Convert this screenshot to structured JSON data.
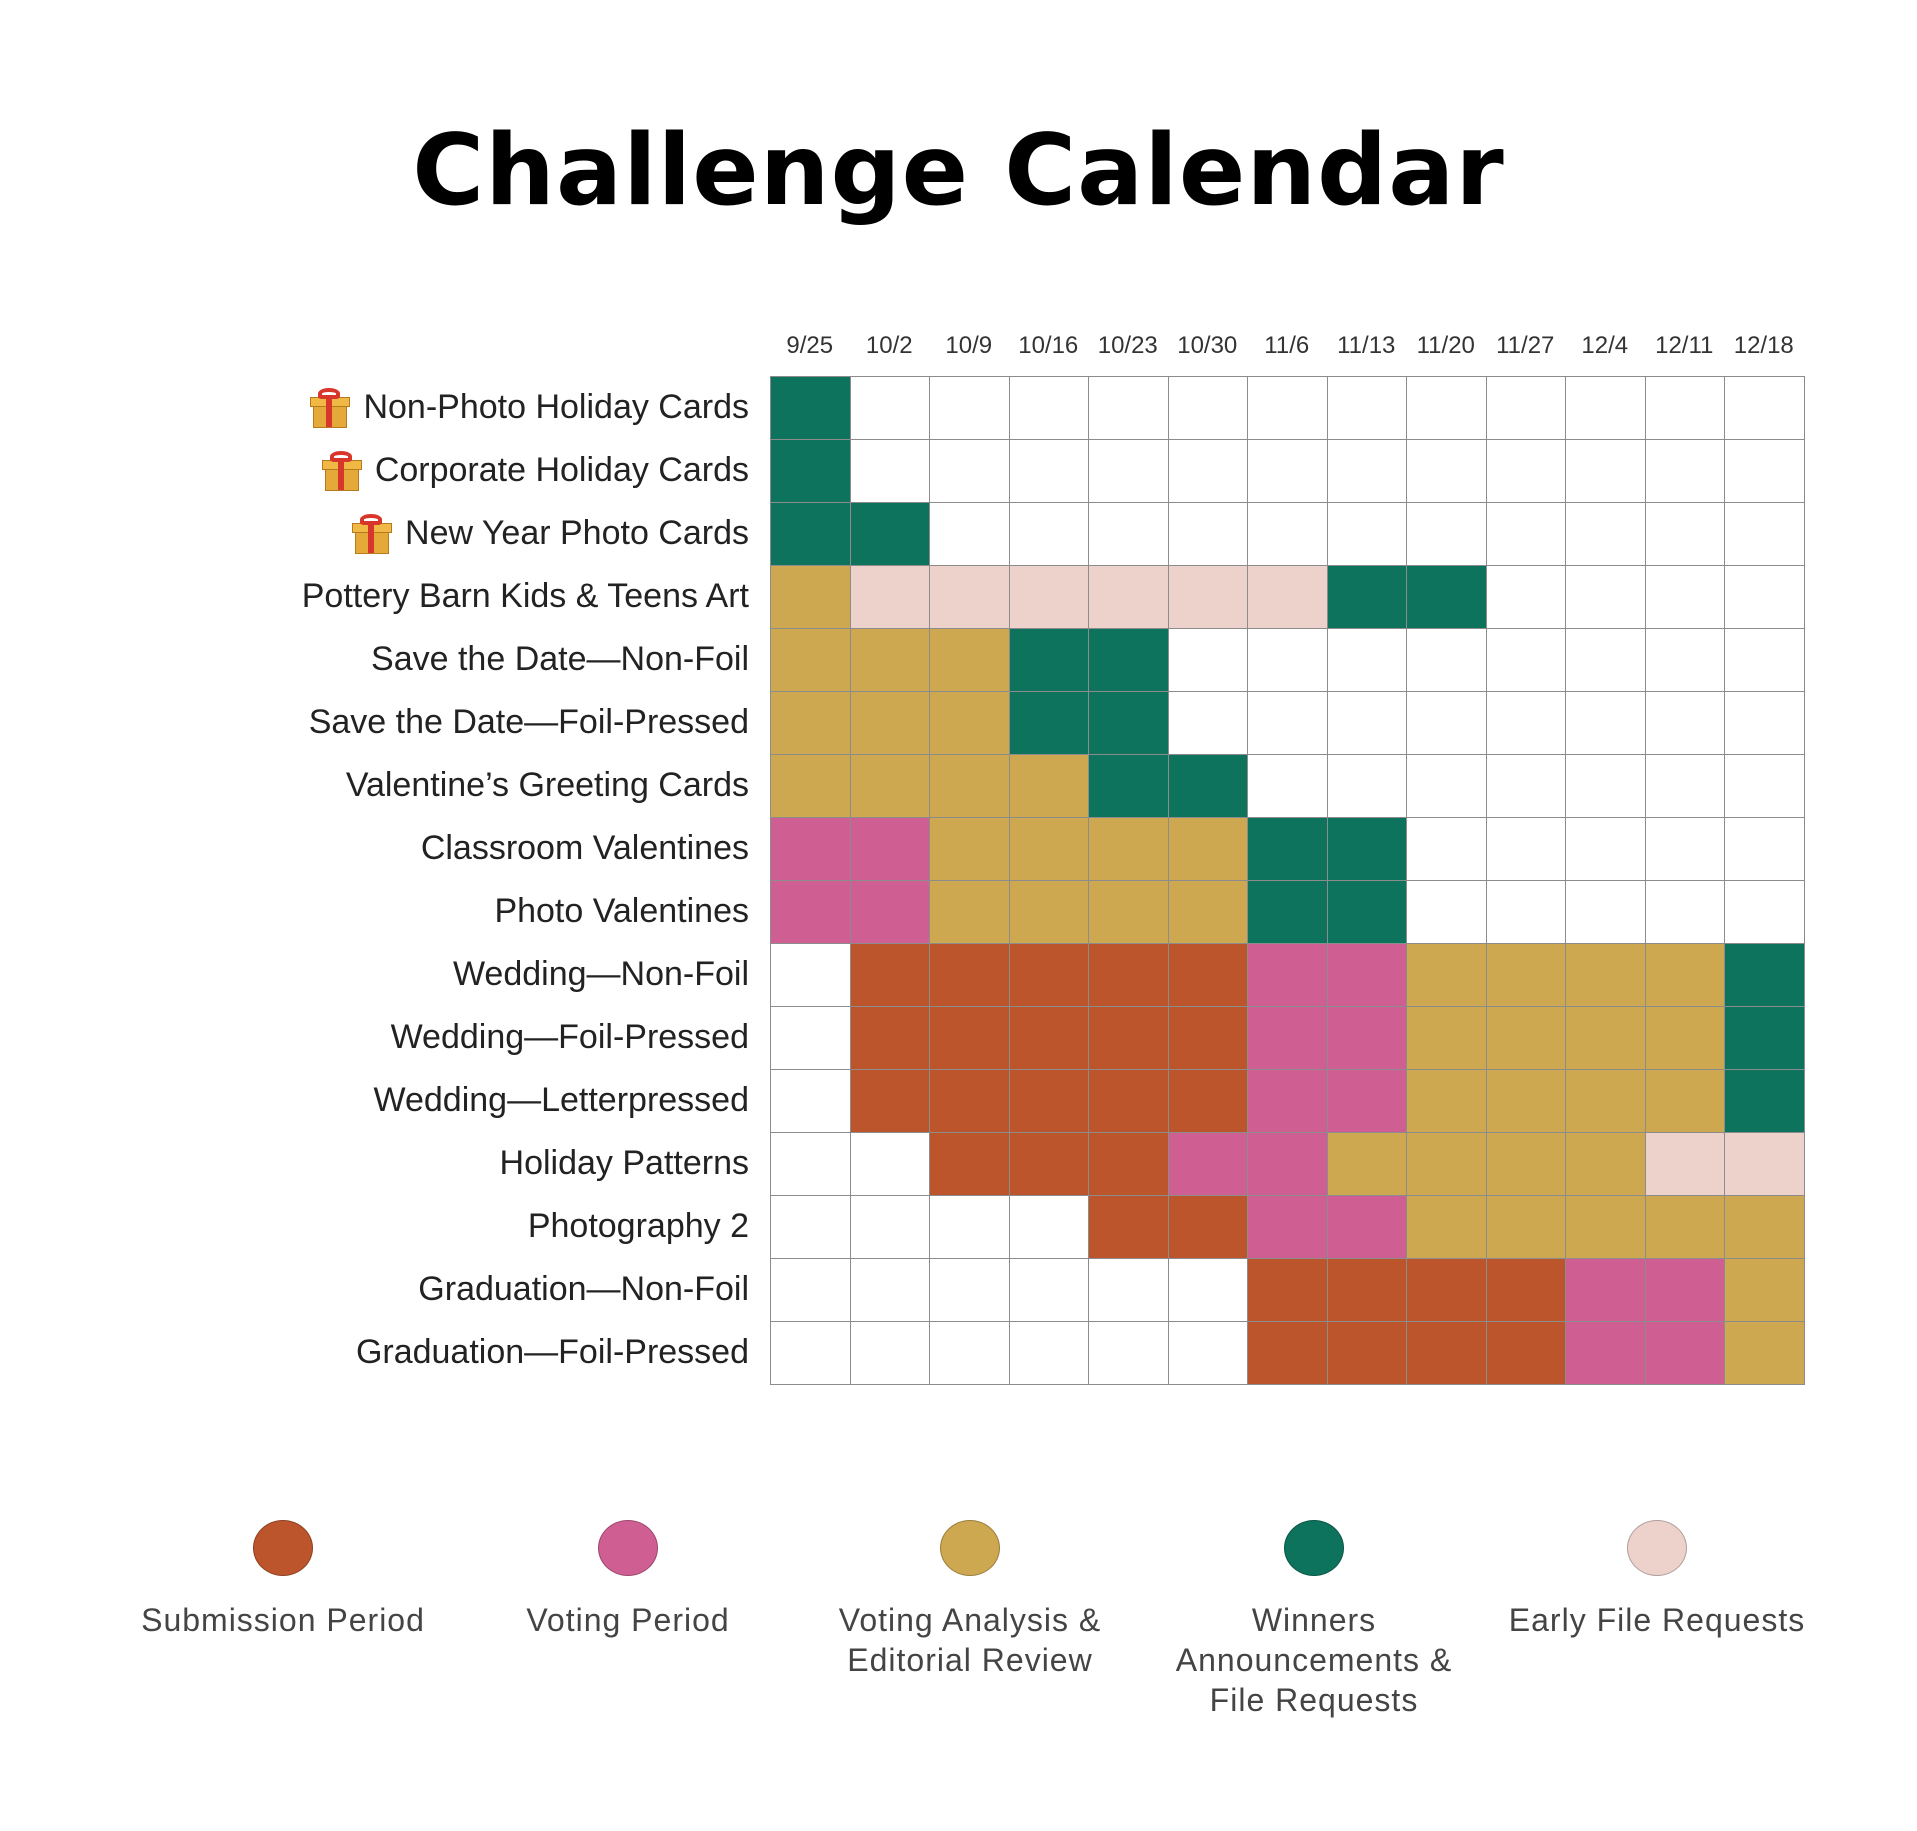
{
  "title": "Challenge Calendar",
  "colors": {
    "submission": "#BC552B",
    "voting": "#CF5F92",
    "analysis": "#CDA851",
    "winners": "#0D735C",
    "early": "#EDD2CC",
    "empty": "#FFFFFF",
    "grid_line": "#8C8C8C"
  },
  "chart_data": {
    "type": "heatmap",
    "title": "Challenge Calendar",
    "columns": [
      "9/25",
      "10/2",
      "10/9",
      "10/16",
      "10/23",
      "10/30",
      "11/6",
      "11/13",
      "11/20",
      "11/27",
      "12/4",
      "12/11",
      "12/18"
    ],
    "rows": [
      {
        "label": "Non-Photo Holiday Cards",
        "icon": "gift-icon",
        "cells": [
          "W",
          "",
          "",
          "",
          "",
          "",
          "",
          "",
          "",
          "",
          "",
          "",
          ""
        ]
      },
      {
        "label": "Corporate Holiday Cards",
        "icon": "gift-icon",
        "cells": [
          "W",
          "",
          "",
          "",
          "",
          "",
          "",
          "",
          "",
          "",
          "",
          "",
          ""
        ]
      },
      {
        "label": "New Year Photo Cards",
        "icon": "gift-icon",
        "cells": [
          "W",
          "W",
          "",
          "",
          "",
          "",
          "",
          "",
          "",
          "",
          "",
          "",
          ""
        ]
      },
      {
        "label": "Pottery Barn Kids & Teens Art",
        "icon": "",
        "cells": [
          "A",
          "E",
          "E",
          "E",
          "E",
          "E",
          "E",
          "W",
          "W",
          "",
          "",
          "",
          ""
        ]
      },
      {
        "label": "Save the Date—Non-Foil",
        "icon": "",
        "cells": [
          "A",
          "A",
          "A",
          "W",
          "W",
          "",
          "",
          "",
          "",
          "",
          "",
          "",
          ""
        ]
      },
      {
        "label": "Save the Date—Foil-Pressed",
        "icon": "",
        "cells": [
          "A",
          "A",
          "A",
          "W",
          "W",
          "",
          "",
          "",
          "",
          "",
          "",
          "",
          ""
        ]
      },
      {
        "label": "Valentine’s Greeting Cards",
        "icon": "",
        "cells": [
          "A",
          "A",
          "A",
          "A",
          "W",
          "W",
          "",
          "",
          "",
          "",
          "",
          "",
          ""
        ]
      },
      {
        "label": "Classroom Valentines",
        "icon": "",
        "cells": [
          "V",
          "V",
          "A",
          "A",
          "A",
          "A",
          "W",
          "W",
          "",
          "",
          "",
          "",
          ""
        ]
      },
      {
        "label": "Photo Valentines",
        "icon": "",
        "cells": [
          "V",
          "V",
          "A",
          "A",
          "A",
          "A",
          "W",
          "W",
          "",
          "",
          "",
          "",
          ""
        ]
      },
      {
        "label": "Wedding—Non-Foil",
        "icon": "",
        "cells": [
          "",
          "S",
          "S",
          "S",
          "S",
          "S",
          "V",
          "V",
          "A",
          "A",
          "A",
          "A",
          "W"
        ]
      },
      {
        "label": "Wedding—Foil-Pressed",
        "icon": "",
        "cells": [
          "",
          "S",
          "S",
          "S",
          "S",
          "S",
          "V",
          "V",
          "A",
          "A",
          "A",
          "A",
          "W"
        ]
      },
      {
        "label": "Wedding—Letterpressed",
        "icon": "",
        "cells": [
          "",
          "S",
          "S",
          "S",
          "S",
          "S",
          "V",
          "V",
          "A",
          "A",
          "A",
          "A",
          "W"
        ]
      },
      {
        "label": "Holiday Patterns",
        "icon": "",
        "cells": [
          "",
          "",
          "S",
          "S",
          "S",
          "V",
          "V",
          "A",
          "A",
          "A",
          "A",
          "E",
          "E"
        ]
      },
      {
        "label": "Photography 2",
        "icon": "",
        "cells": [
          "",
          "",
          "",
          "",
          "S",
          "S",
          "V",
          "V",
          "A",
          "A",
          "A",
          "A",
          "A"
        ]
      },
      {
        "label": "Graduation—Non-Foil",
        "icon": "",
        "cells": [
          "",
          "",
          "",
          "",
          "",
          "",
          "S",
          "S",
          "S",
          "S",
          "V",
          "V",
          "A"
        ]
      },
      {
        "label": "Graduation—Foil-Pressed",
        "icon": "",
        "cells": [
          "",
          "",
          "",
          "",
          "",
          "",
          "S",
          "S",
          "S",
          "S",
          "V",
          "V",
          "A"
        ]
      }
    ],
    "legend": [
      {
        "code": "S",
        "label": "Submission Period",
        "color": "#BC552B"
      },
      {
        "code": "V",
        "label": "Voting Period",
        "color": "#CF5F92"
      },
      {
        "code": "A",
        "label": "Voting Analysis &\nEditorial Review",
        "color": "#CDA851"
      },
      {
        "code": "W",
        "label": "Winners\nAnnouncements &\nFile Requests",
        "color": "#0D735C"
      },
      {
        "code": "E",
        "label": "Early File Requests",
        "color": "#EDD2CC"
      }
    ]
  }
}
